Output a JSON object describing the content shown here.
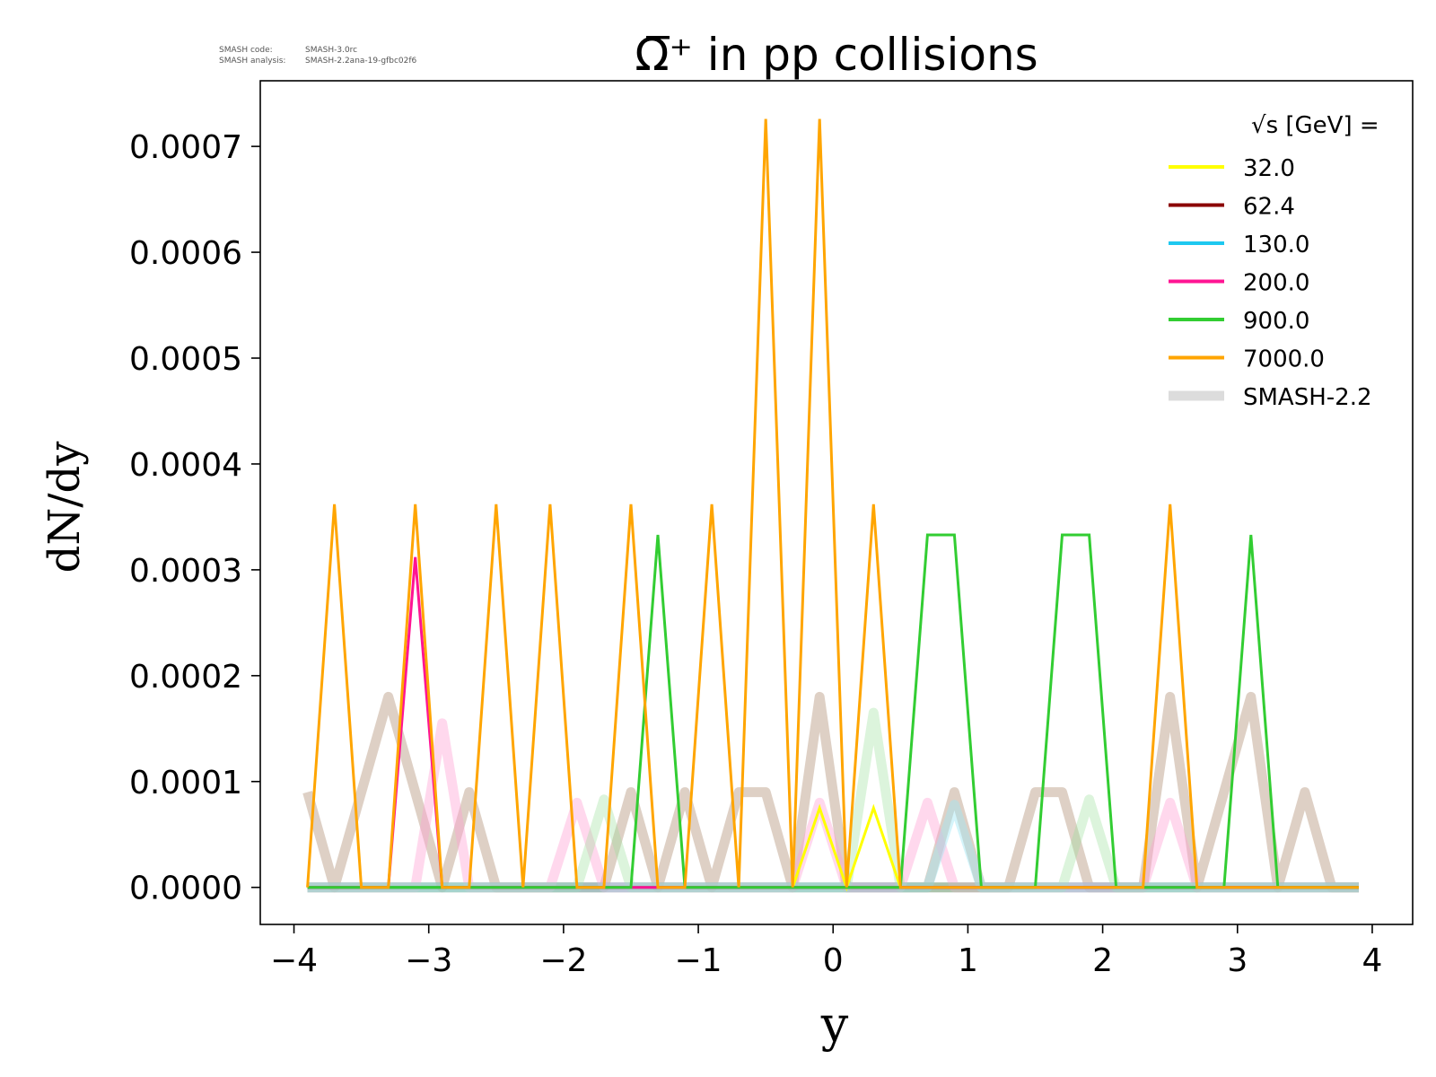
{
  "meta": {
    "code_label": "SMASH code:",
    "code_value": "SMASH-3.0rc",
    "analysis_label": "SMASH analysis:",
    "analysis_value": "SMASH-2.2ana-19-gfbc02f6"
  },
  "chart_data": {
    "type": "line",
    "title": "Ω̅⁺ in pp collisions",
    "xlabel": "y",
    "ylabel": "dN/dy",
    "xlim": [
      -4.25,
      4.3
    ],
    "ylim": [
      -3.5e-05,
      0.000762
    ],
    "xticks": [
      -4,
      -3,
      -2,
      -1,
      0,
      1,
      2,
      3,
      4
    ],
    "xtick_labels": [
      "−4",
      "−3",
      "−2",
      "−1",
      "0",
      "1",
      "2",
      "3",
      "4"
    ],
    "yticks": [
      0.0,
      0.0001,
      0.0002,
      0.0003,
      0.0004,
      0.0005,
      0.0006,
      0.0007
    ],
    "ytick_labels": [
      "0.0000",
      "0.0001",
      "0.0002",
      "0.0003",
      "0.0004",
      "0.0005",
      "0.0006",
      "0.0007"
    ],
    "legend": {
      "title": "√s  [GeV] =",
      "position": "top-right",
      "entries": [
        "32.0",
        "62.4",
        "130.0",
        "200.0",
        "900.0",
        "7000.0",
        "SMASH-2.2"
      ]
    },
    "x": [
      -3.9,
      -3.7,
      -3.5,
      -3.3,
      -3.1,
      -2.9,
      -2.7,
      -2.5,
      -2.3,
      -2.1,
      -1.9,
      -1.7,
      -1.5,
      -1.3,
      -1.1,
      -0.9,
      -0.7,
      -0.5,
      -0.3,
      -0.1,
      0.1,
      0.3,
      0.5,
      0.7,
      0.9,
      1.1,
      1.3,
      1.5,
      1.7,
      1.9,
      2.1,
      2.3,
      2.5,
      2.7,
      2.9,
      3.1,
      3.3,
      3.5,
      3.7,
      3.9
    ],
    "series": [
      {
        "name": "32.0",
        "color": "#ffff00",
        "width": 3,
        "opacity": 1,
        "values": [
          0,
          0,
          0,
          0,
          0,
          0,
          0,
          0,
          0,
          0,
          0,
          0,
          0,
          0,
          0,
          0,
          0,
          0,
          0,
          7.5e-05,
          0,
          7.5e-05,
          0,
          0,
          0,
          0,
          0,
          0,
          0,
          0,
          0,
          0,
          0,
          0,
          0,
          0,
          0,
          0,
          0,
          0
        ]
      },
      {
        "name": "62.4",
        "color": "#8b0000",
        "width": 3,
        "opacity": 1,
        "values": [
          0,
          0,
          0,
          0,
          0,
          0,
          0,
          0,
          0,
          0,
          0,
          0,
          0,
          0,
          0,
          0,
          0,
          0,
          0,
          0,
          0,
          0,
          0,
          0,
          0,
          0,
          0,
          0,
          0,
          0,
          0,
          0,
          0,
          0,
          0,
          0,
          0,
          0,
          0,
          0
        ]
      },
      {
        "name": "130.0",
        "color": "#1ec8f0",
        "width": 3,
        "opacity": 1,
        "values": [
          0,
          0,
          0,
          0,
          0,
          0,
          0,
          0,
          0,
          0,
          0,
          0,
          0,
          0,
          0,
          0,
          0,
          0,
          0,
          0,
          0,
          0,
          0,
          0,
          0,
          0,
          0,
          0,
          0,
          0,
          0,
          0,
          0,
          0,
          0,
          0,
          0,
          0,
          0,
          0
        ]
      },
      {
        "name": "200.0",
        "color": "#ff1493",
        "width": 3,
        "opacity": 1,
        "values": [
          0,
          0,
          0,
          0,
          0.000312,
          0,
          0,
          0,
          0,
          0,
          0,
          0,
          0,
          0,
          0,
          0,
          0,
          0,
          0,
          0,
          0,
          0,
          0,
          0,
          0,
          0,
          0,
          0,
          0,
          0,
          0,
          0,
          0,
          0,
          0,
          0,
          0,
          0,
          0,
          0
        ]
      },
      {
        "name": "900.0",
        "color": "#32cd32",
        "width": 3,
        "opacity": 1,
        "values": [
          0,
          0,
          0,
          0,
          0,
          0,
          0,
          0,
          0,
          0,
          0,
          0,
          0,
          0.000333,
          0,
          0,
          0,
          0,
          0,
          0,
          0,
          0,
          0,
          0.000333,
          0.000333,
          0,
          0,
          0,
          0.000333,
          0.000333,
          0,
          0,
          0,
          0,
          0,
          0.000333,
          0,
          0,
          0,
          0
        ]
      },
      {
        "name": "7000.0",
        "color": "#ffa500",
        "width": 3,
        "opacity": 1,
        "values": [
          0,
          0.000362,
          0,
          0,
          0.000362,
          0,
          0,
          0.000362,
          0,
          0.000362,
          0,
          0,
          0.000362,
          0,
          0,
          0.000362,
          0,
          0.000726,
          0,
          0.000726,
          0,
          0.000362,
          0,
          0,
          0,
          0,
          0,
          0,
          0,
          0,
          0,
          0,
          0.000362,
          0,
          0,
          0,
          0,
          0,
          0,
          0
        ]
      }
    ],
    "reference_series": [
      {
        "name": "SMASH-2.2 (62.4)",
        "color": "#a0785a",
        "width": 11,
        "opacity": 0.35,
        "values": [
          9e-05,
          0,
          9e-05,
          0.00018,
          9e-05,
          0,
          9e-05,
          0,
          0,
          0,
          0,
          0,
          9e-05,
          0,
          9e-05,
          0,
          9e-05,
          9e-05,
          0,
          0.00018,
          0,
          0,
          0,
          0,
          9e-05,
          0,
          0,
          9e-05,
          9e-05,
          0,
          0,
          0,
          0.00018,
          0,
          9e-05,
          0.00018,
          0,
          9e-05,
          0,
          0
        ]
      },
      {
        "name": "SMASH-2.2 (200)",
        "color": "#ff9ed2",
        "width": 11,
        "opacity": 0.4,
        "values": [
          0,
          0,
          0,
          0,
          0,
          0.000155,
          0,
          0,
          0,
          0,
          8e-05,
          0,
          0,
          0,
          0,
          0,
          0,
          0,
          0,
          8e-05,
          0,
          0,
          0,
          8e-05,
          0,
          0,
          0,
          0,
          0,
          0,
          0,
          0,
          8e-05,
          0,
          0,
          0,
          0,
          0,
          0,
          0
        ]
      },
      {
        "name": "SMASH-2.2 (900)",
        "color": "#9be09b",
        "width": 11,
        "opacity": 0.35,
        "values": [
          0,
          0,
          0,
          0,
          0,
          0,
          0,
          0,
          0,
          0,
          0,
          8.3e-05,
          0,
          0,
          0,
          0,
          0,
          0,
          0,
          0,
          0,
          0.000165,
          0,
          0,
          0,
          0,
          0,
          0,
          0,
          8.3e-05,
          0,
          0,
          0,
          0,
          0,
          0,
          0,
          0,
          0,
          0
        ]
      },
      {
        "name": "SMASH-2.2 (130)",
        "color": "#9fe6f5",
        "width": 11,
        "opacity": 0.45,
        "values": [
          0,
          0,
          0,
          0,
          0,
          0,
          0,
          0,
          0,
          0,
          0,
          0,
          0,
          0,
          0,
          0,
          0,
          0,
          0,
          0,
          0,
          0,
          0,
          0,
          7.8e-05,
          0,
          0,
          0,
          0,
          0,
          0,
          0,
          0,
          0,
          0,
          0,
          0,
          0,
          0,
          0
        ]
      }
    ],
    "baseline_color": "#b4b4b4",
    "legend_colors": {
      "32.0": "#ffff00",
      "62.4": "#8b0000",
      "130.0": "#1ec8f0",
      "200.0": "#ff1493",
      "900.0": "#32cd32",
      "7000.0": "#ffa500",
      "SMASH-2.2": "#dcdcdc"
    }
  }
}
